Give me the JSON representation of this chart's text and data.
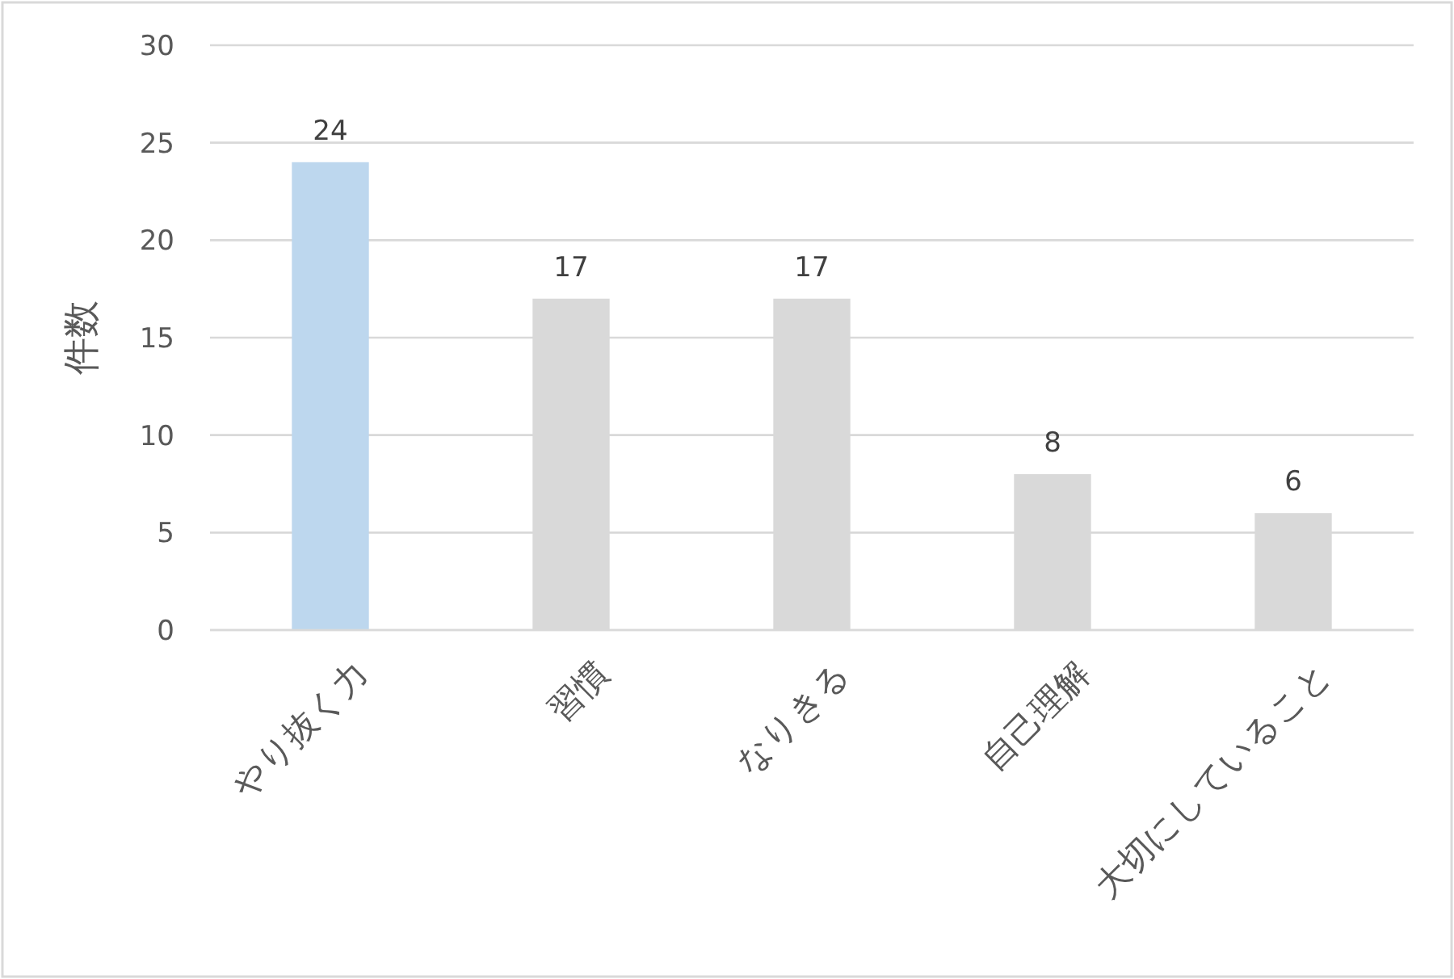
{
  "chart_data": {
    "type": "bar",
    "ylabel": "件数",
    "categories": [
      "やり抜く力",
      "習慣",
      "なりきる",
      "自己理解",
      "大切にしていること"
    ],
    "values": [
      24,
      17,
      17,
      8,
      6
    ],
    "colors": [
      "#bdd7ee",
      "#d9d9d9",
      "#d9d9d9",
      "#d9d9d9",
      "#d9d9d9"
    ],
    "ylim": [
      0,
      30
    ],
    "yticks": [
      0,
      5,
      10,
      15,
      20,
      25,
      30
    ],
    "grid": "y",
    "data_labels": true
  }
}
